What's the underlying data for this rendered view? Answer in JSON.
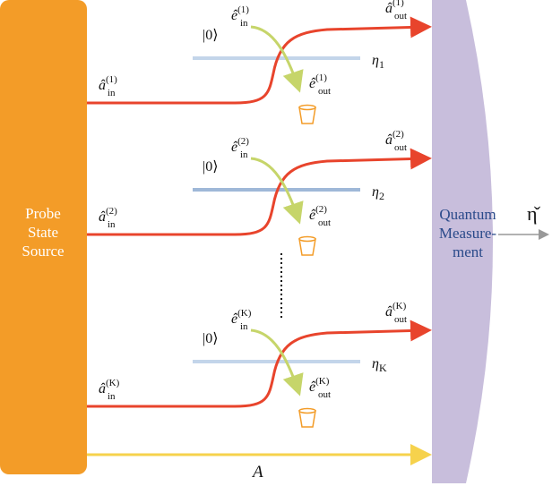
{
  "source": {
    "lines": [
      "Probe",
      "State",
      "Source"
    ]
  },
  "measurement": {
    "lines": [
      "Quantum",
      "Measure-",
      "ment"
    ]
  },
  "estimate": "η̌",
  "ancilla_label": "A",
  "channels": [
    {
      "vacuum": "|0⟩",
      "a_in": {
        "base": "â",
        "sub": "in",
        "sup": "(1)"
      },
      "a_out": {
        "base": "â",
        "sub": "out",
        "sup": "(1)"
      },
      "e_in": {
        "base": "ê",
        "sub": "in",
        "sup": "(1)"
      },
      "e_out": {
        "base": "ê",
        "sub": "out",
        "sup": "(1)"
      },
      "eta": {
        "base": "η",
        "sub": "1"
      }
    },
    {
      "vacuum": "|0⟩",
      "a_in": {
        "base": "â",
        "sub": "in",
        "sup": "(2)"
      },
      "a_out": {
        "base": "â",
        "sub": "out",
        "sup": "(2)"
      },
      "e_in": {
        "base": "ê",
        "sub": "in",
        "sup": "(2)"
      },
      "e_out": {
        "base": "ê",
        "sub": "out",
        "sup": "(2)"
      },
      "eta": {
        "base": "η",
        "sub": "2"
      }
    },
    {
      "vacuum": "|0⟩",
      "a_in": {
        "base": "â",
        "sub": "in",
        "sup": "(K)"
      },
      "a_out": {
        "base": "â",
        "sub": "out",
        "sup": "(K)"
      },
      "e_in": {
        "base": "ê",
        "sub": "in",
        "sup": "(K)"
      },
      "e_out": {
        "base": "ê",
        "sub": "out",
        "sup": "(K)"
      },
      "eta": {
        "base": "η",
        "sub": "K"
      }
    }
  ]
}
